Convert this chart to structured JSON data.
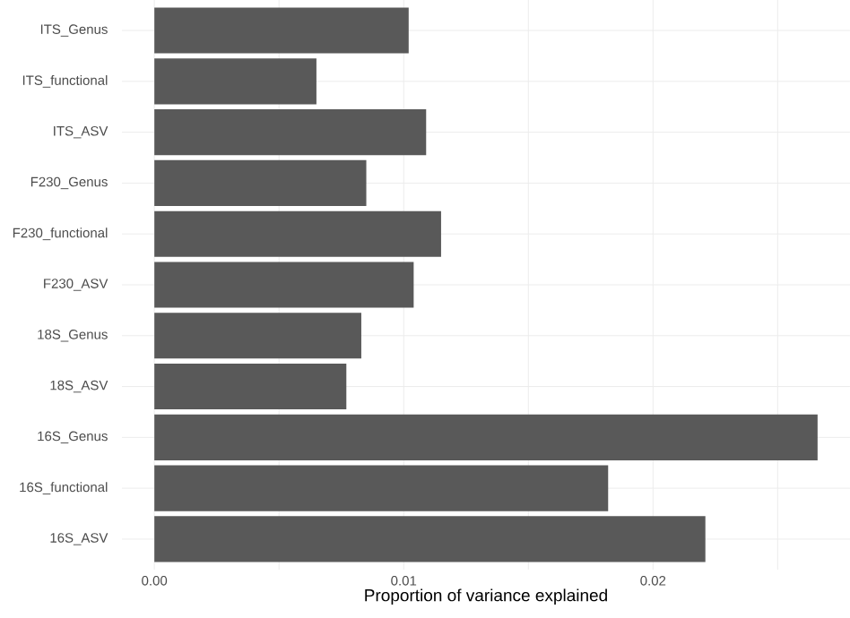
{
  "chart_data": {
    "type": "bar",
    "orientation": "horizontal",
    "xlabel": "Proportion of variance explained",
    "categories": [
      "ITS_Genus",
      "ITS_functional",
      "ITS_ASV",
      "F230_Genus",
      "F230_functional",
      "F230_ASV",
      "18S_Genus",
      "18S_ASV",
      "16S_Genus",
      "16S_functional",
      "16S_ASV"
    ],
    "values": [
      0.0102,
      0.0065,
      0.0109,
      0.0085,
      0.0115,
      0.0104,
      0.0083,
      0.0077,
      0.0266,
      0.0182,
      0.0221
    ],
    "color": "#595959",
    "xlim": [
      -0.0013,
      0.0279
    ],
    "xticks": [
      {
        "value": 0,
        "label": "0.00"
      },
      {
        "value": 0.005,
        "label": null
      },
      {
        "value": 0.01,
        "label": "0.01"
      },
      {
        "value": 0.015,
        "label": null
      },
      {
        "value": 0.02,
        "label": "0.02"
      },
      {
        "value": 0.025,
        "label": null
      }
    ],
    "grid": true
  }
}
